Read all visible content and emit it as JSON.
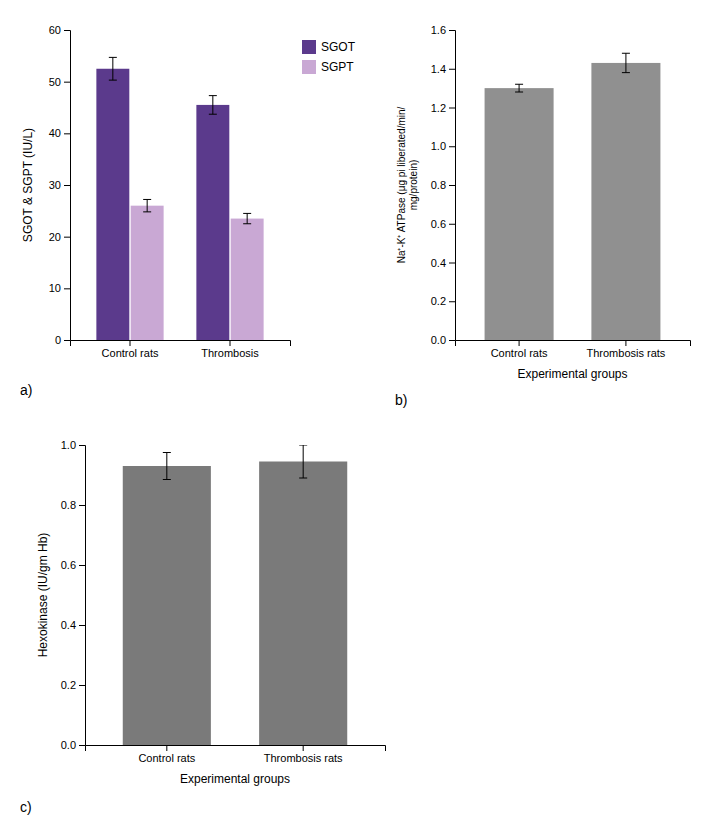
{
  "chart_data": [
    {
      "type": "bar",
      "categories": [
        "Control rats",
        "Thrombosis"
      ],
      "series": [
        {
          "name": "SGOT",
          "color": "#5b3a8c",
          "values": [
            52.5,
            45.5
          ],
          "errors": [
            2.2,
            1.8
          ]
        },
        {
          "name": "SGPT",
          "color": "#c9a8d4",
          "values": [
            26.0,
            23.5
          ],
          "errors": [
            1.2,
            1.0
          ]
        }
      ],
      "ylabel": "SGOT & SGPT (IU/L)",
      "ylim": [
        0,
        60
      ],
      "yticks": [
        0,
        10,
        20,
        30,
        40,
        50,
        60
      ],
      "legend": "right",
      "annotations": [
        "a)"
      ]
    },
    {
      "type": "bar",
      "categories": [
        "Control rats",
        "Thrombosis rats"
      ],
      "values": [
        1.3,
        1.43
      ],
      "errors": [
        0.02,
        0.05
      ],
      "color": "#909090",
      "ylabel": "Na⁺-K⁺ ATPase (μg pi liberated/min/\nmg/protein)",
      "xlabel": "Experimental groups",
      "ylim": [
        0.0,
        1.6
      ],
      "yticks": [
        {
          "value": 0.0,
          "label": "0.0"
        },
        0.2,
        0.4,
        0.6,
        0.8,
        {
          "value": 1.0,
          "label": "1.0"
        },
        1.2,
        1.4,
        1.6
      ],
      "annotations": [
        "b)"
      ]
    },
    {
      "type": "bar",
      "categories": [
        "Control rats",
        "Thrombosis rats"
      ],
      "values": [
        0.93,
        0.945
      ],
      "errors": [
        0.045,
        0.055
      ],
      "color": "#7a7a7a",
      "ylabel": "Hexokinase (IU/gm Hb)",
      "xlabel": "Experimental groups",
      "ylim": [
        0.0,
        1.0
      ],
      "yticks": [
        {
          "value": 0.0,
          "label": "0.0"
        },
        0.2,
        0.4,
        0.6,
        0.8,
        {
          "value": 1.0,
          "label": "1.0"
        }
      ],
      "annotations": [
        "c)"
      ]
    }
  ]
}
